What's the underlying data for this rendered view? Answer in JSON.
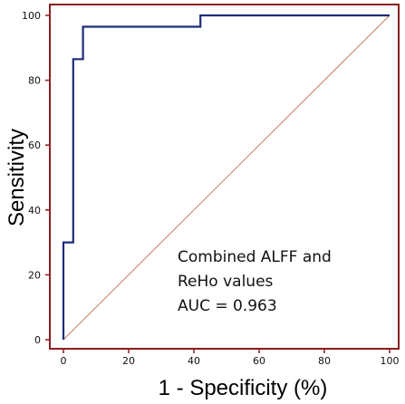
{
  "chart_data": {
    "type": "line",
    "title": "",
    "xlabel": "1 - Specificity (%)",
    "ylabel": "Sensitivity",
    "xlim": [
      0,
      100
    ],
    "ylim": [
      0,
      100
    ],
    "x_ticks": [
      "0",
      "20",
      "40",
      "60",
      "80",
      "100"
    ],
    "y_ticks": [
      "0",
      "20",
      "40",
      "60",
      "80",
      "100"
    ],
    "grid": false,
    "series": [
      {
        "color": "#1f2a7a",
        "x": [
          0,
          0,
          0,
          3,
          3,
          6,
          6,
          42,
          42,
          100
        ],
        "y": [
          0,
          7,
          30,
          30,
          86.5,
          86.5,
          96.5,
          96.5,
          100,
          100
        ]
      }
    ],
    "reference_line": {
      "color": "#c87860",
      "x": [
        0,
        100
      ],
      "y": [
        0,
        100
      ]
    },
    "annotations": [
      "Combined ALFF and",
      "ReHo values",
      "AUC = 0.963"
    ],
    "frame_color": "#8b1e1e"
  }
}
